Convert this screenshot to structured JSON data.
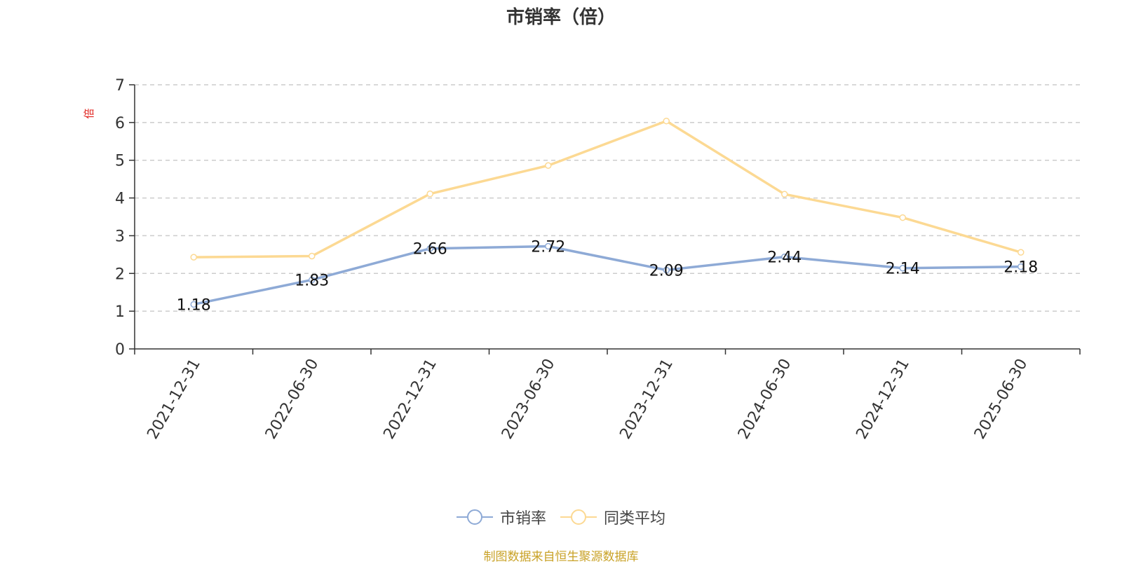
{
  "chart_data": {
    "type": "line",
    "title": "市销率（倍）",
    "ylabel": "倍",
    "xlabel": "",
    "categories": [
      "2021-12-31",
      "2022-06-30",
      "2022-12-31",
      "2023-06-30",
      "2023-12-31",
      "2024-06-30",
      "2024-12-31",
      "2025-06-30"
    ],
    "series": [
      {
        "name": "市销率",
        "values": [
          1.18,
          1.83,
          2.66,
          2.72,
          2.09,
          2.44,
          2.14,
          2.18
        ],
        "color": "#8eaad6",
        "data_labels": true
      },
      {
        "name": "同类平均",
        "values": [
          2.43,
          2.46,
          4.11,
          4.86,
          6.04,
          4.1,
          3.48,
          2.56
        ],
        "color": "#fcd993",
        "data_labels": false
      }
    ],
    "ylim": [
      0,
      7
    ],
    "yticks": [
      0,
      1,
      2,
      3,
      4,
      5,
      6,
      7
    ],
    "grid": true,
    "legend_position": "bottom"
  },
  "source_note": "制图数据来自恒生聚源数据库"
}
